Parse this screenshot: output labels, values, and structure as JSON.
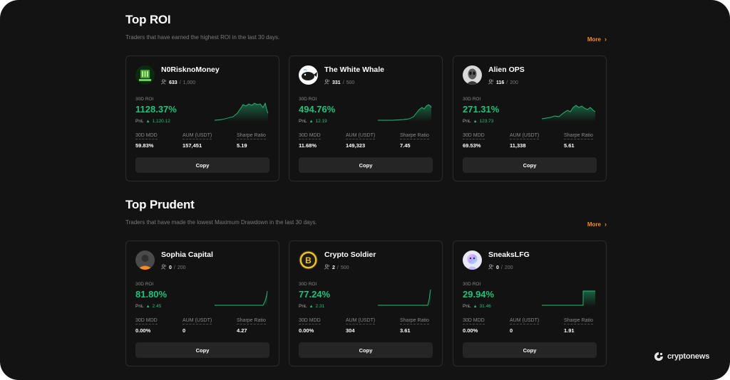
{
  "sections": [
    {
      "title": "Top ROI",
      "subtitle": "Traders that have earned the highest ROI in the last 30 days.",
      "more_label": "More",
      "cards": [
        {
          "name": "N0RisknoMoney",
          "followers": "633",
          "followers_max": "1,000",
          "roi_label": "30D ROI",
          "roi": "1128.37%",
          "pnl_label": "PnL",
          "pnl": "1,120.12",
          "mdd_label": "30D MDD",
          "mdd": "59.83%",
          "aum_label": "AUM (USDT)",
          "aum": "157,451",
          "sharpe_label": "Sharpe Ratio",
          "sharpe": "5.19",
          "copy_label": "Copy",
          "avatar": "green-emblem-avatar"
        },
        {
          "name": "The White Whale",
          "followers": "331",
          "followers_max": "500",
          "roi_label": "30D ROI",
          "roi": "494.76%",
          "pnl_label": "PnL",
          "pnl": "12.19",
          "mdd_label": "30D MDD",
          "mdd": "11.68%",
          "aum_label": "AUM (USDT)",
          "aum": "149,323",
          "sharpe_label": "Sharpe Ratio",
          "sharpe": "7.45",
          "copy_label": "Copy",
          "avatar": "whale-avatar"
        },
        {
          "name": "Alien OPS",
          "followers": "116",
          "followers_max": "200",
          "roi_label": "30D ROI",
          "roi": "271.31%",
          "pnl_label": "PnL",
          "pnl": "123.73",
          "mdd_label": "30D MDD",
          "mdd": "69.53%",
          "aum_label": "AUM (USDT)",
          "aum": "11,338",
          "sharpe_label": "Sharpe Ratio",
          "sharpe": "5.61",
          "copy_label": "Copy",
          "avatar": "alien-avatar"
        }
      ]
    },
    {
      "title": "Top Prudent",
      "subtitle": "Traders that have made the lowest Maximum Drawdown in the last 30 days.",
      "more_label": "More",
      "cards": [
        {
          "name": "Sophia Capital",
          "followers": "0",
          "followers_max": "200",
          "roi_label": "30D ROI",
          "roi": "81.80%",
          "pnl_label": "PnL",
          "pnl": "2.45",
          "mdd_label": "30D MDD",
          "mdd": "0.00%",
          "aum_label": "AUM (USDT)",
          "aum": "0",
          "sharpe_label": "Sharpe Ratio",
          "sharpe": "4.27",
          "copy_label": "Copy",
          "avatar": "default-user-avatar"
        },
        {
          "name": "Crypto Soldier",
          "followers": "2",
          "followers_max": "500",
          "roi_label": "30D ROI",
          "roi": "77.24%",
          "pnl_label": "PnL",
          "pnl": "2.31",
          "mdd_label": "30D MDD",
          "mdd": "0.00%",
          "aum_label": "AUM (USDT)",
          "aum": "304",
          "sharpe_label": "Sharpe Ratio",
          "sharpe": "3.61",
          "copy_label": "Copy",
          "avatar": "b-coin-avatar"
        },
        {
          "name": "SneaksLFG",
          "followers": "0",
          "followers_max": "200",
          "roi_label": "30D ROI",
          "roi": "29.94%",
          "pnl_label": "PnL",
          "pnl": "31.46",
          "mdd_label": "30D MDD",
          "mdd": "0.00%",
          "aum_label": "AUM (USDT)",
          "aum": "0",
          "sharpe_label": "Sharpe Ratio",
          "sharpe": "1.91",
          "copy_label": "Copy",
          "avatar": "holo-avatar"
        }
      ]
    }
  ],
  "brand": {
    "name": "cryptonews"
  },
  "colors": {
    "accent": "#ff8a1f",
    "positive": "#21c17b",
    "background": "#131313",
    "card": "#121212",
    "button": "#252525"
  }
}
